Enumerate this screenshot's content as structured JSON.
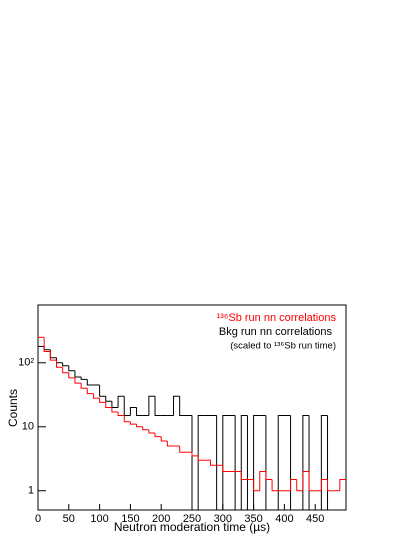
{
  "chart_data": {
    "type": "histogram",
    "xlabel": "Neutron moderation time (µs)",
    "ylabel": "Counts",
    "log_y": true,
    "bins": [
      0,
      10,
      20,
      30,
      40,
      50,
      60,
      70,
      80,
      90,
      100,
      110,
      120,
      130,
      140,
      150,
      160,
      170,
      180,
      190,
      200,
      210,
      220,
      230,
      240,
      250,
      260,
      270,
      280,
      290,
      300,
      310,
      320,
      330,
      340,
      350,
      360,
      370,
      380,
      390,
      400,
      410,
      420,
      430,
      440,
      450,
      460,
      470,
      480,
      490,
      500
    ],
    "series": [
      {
        "name": "Bkg run nn correlations",
        "color": "#000000",
        "values": [
          180,
          160,
          120,
          100,
          90,
          75,
          60,
          55,
          45,
          45,
          30,
          25,
          20,
          30,
          15,
          20,
          15,
          15,
          30,
          15,
          15,
          15,
          30,
          15,
          15,
          0,
          15,
          15,
          15,
          0,
          15,
          15,
          0,
          15,
          0,
          15,
          15,
          0,
          0,
          15,
          15,
          0,
          0,
          15,
          0,
          0,
          15,
          0,
          0,
          0
        ]
      },
      {
        "name": "¹³⁶Sb run nn correlations",
        "color": "#ff0000",
        "values": [
          250,
          150,
          110,
          85,
          70,
          58,
          48,
          40,
          33,
          28,
          24,
          20,
          17,
          15,
          12,
          11,
          10,
          9,
          8,
          7,
          6,
          5,
          5,
          4,
          4,
          3.5,
          3,
          3,
          2.5,
          2.5,
          2,
          2,
          2,
          1.5,
          1.5,
          1,
          2,
          1.5,
          1,
          1,
          1,
          1.5,
          1,
          2,
          1,
          1,
          1.5,
          1,
          1,
          1.5
        ]
      }
    ],
    "annotation": "(scaled to ¹³⁶Sb run time)",
    "xlim": [
      0,
      500
    ],
    "ylim": [
      0.5,
      800
    ],
    "xticks": [
      0,
      50,
      100,
      150,
      200,
      250,
      300,
      350,
      400,
      450
    ],
    "yticks": [
      1,
      10,
      {
        "value": 100,
        "label": "10²"
      }
    ]
  }
}
